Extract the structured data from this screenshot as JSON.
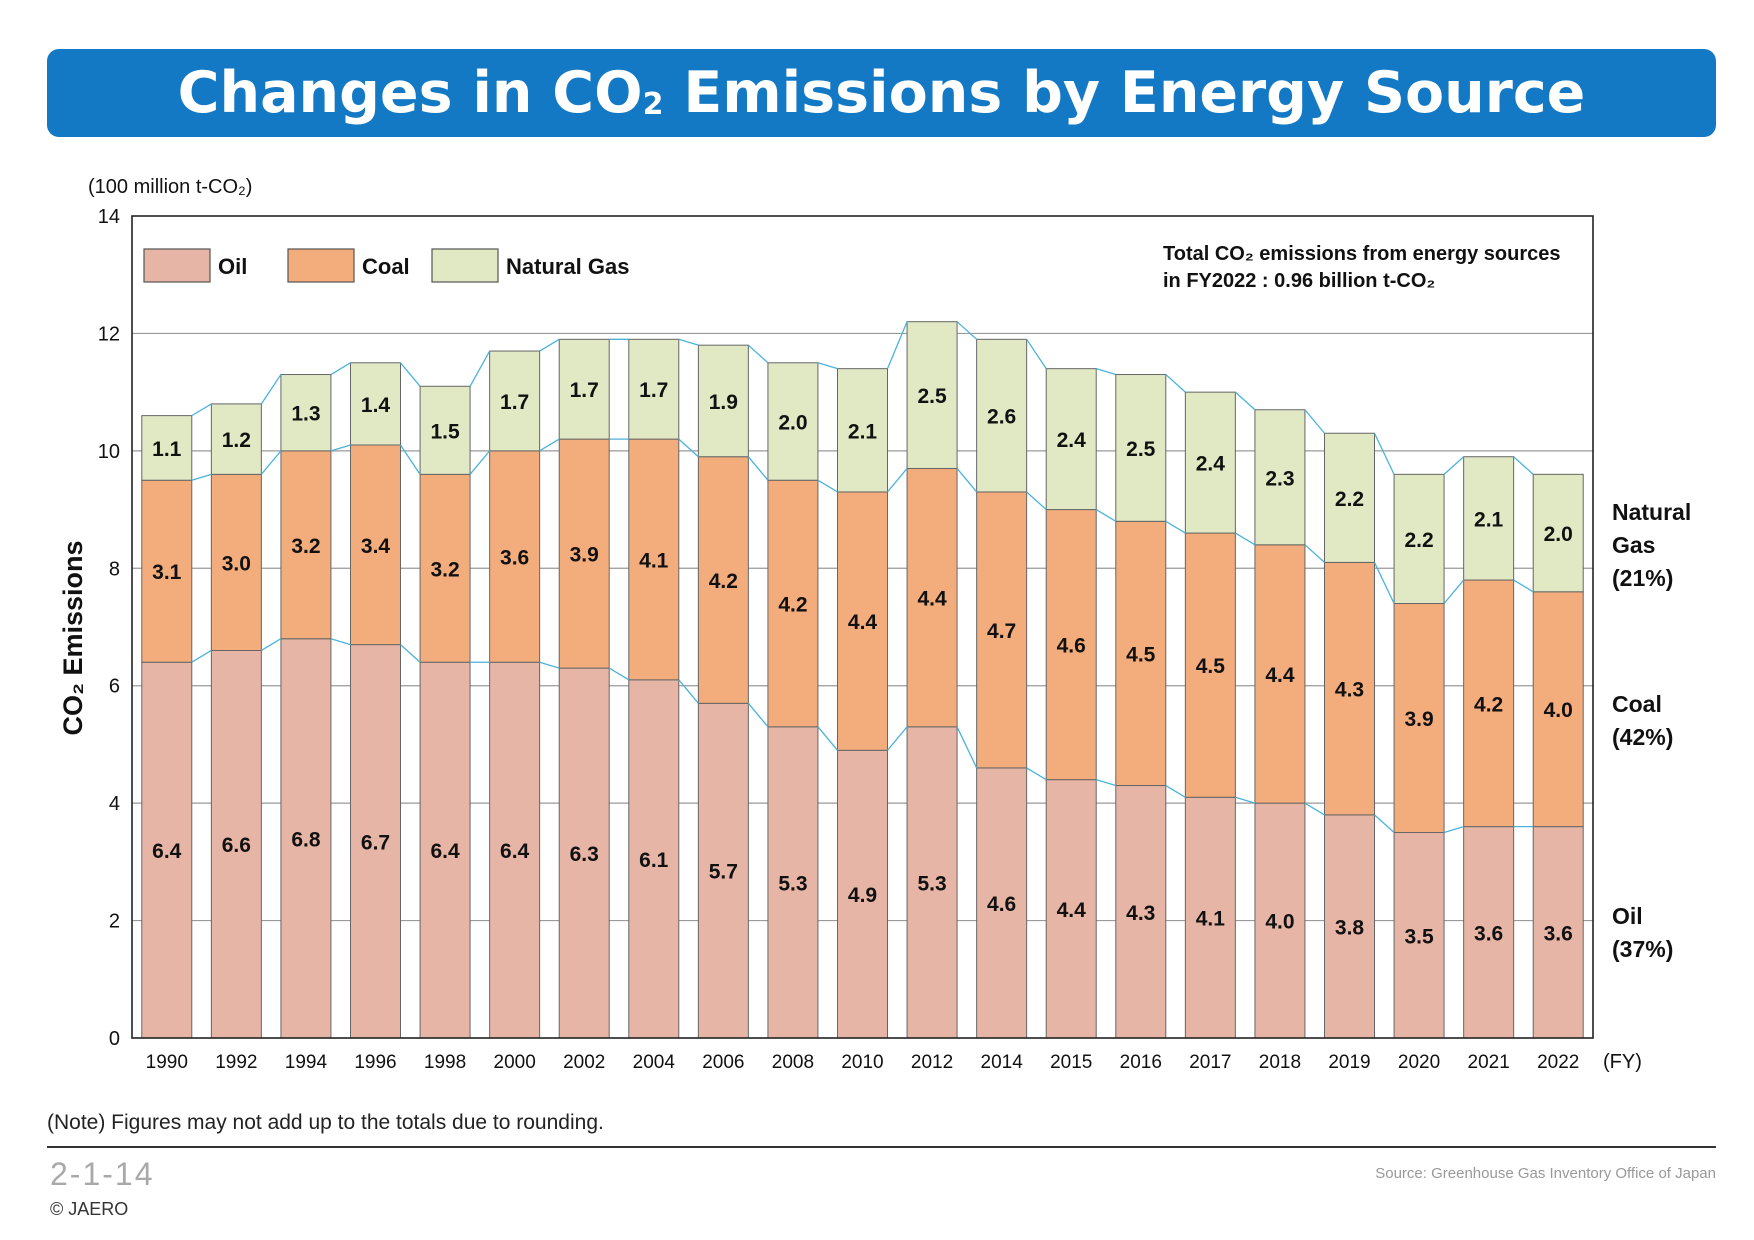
{
  "title": {
    "main_before": "Changes in CO",
    "main_sub": "2",
    "main_after": " Emissions by Energy Source"
  },
  "chart_data": {
    "type": "bar",
    "stacked": true,
    "unit_label": "(100 million t-CO₂)",
    "ylabel": "CO₂ Emissions",
    "xlabel_unit": "(FY)",
    "ylim": [
      0,
      14
    ],
    "yticks": [
      0,
      2,
      4,
      6,
      8,
      10,
      12,
      14
    ],
    "grid": true,
    "legend_position": "top-left",
    "categories": [
      "1990",
      "1992",
      "1994",
      "1996",
      "1998",
      "2000",
      "2002",
      "2004",
      "2006",
      "2008",
      "2010",
      "2012",
      "2014",
      "2015",
      "2016",
      "2017",
      "2018",
      "2019",
      "2020",
      "2021",
      "2022"
    ],
    "series": [
      {
        "name": "Oil",
        "color": "#e6b5a6",
        "values": [
          6.4,
          6.6,
          6.8,
          6.7,
          6.4,
          6.4,
          6.3,
          6.1,
          5.7,
          5.3,
          4.9,
          5.3,
          4.6,
          4.4,
          4.3,
          4.1,
          4.0,
          3.8,
          3.5,
          3.6,
          3.6
        ],
        "labels": [
          "6.4",
          "6.6",
          "6.8",
          "6.7",
          "6.4",
          "6.4",
          "6.3",
          "6.1",
          "5.7",
          "5.3",
          "4.9",
          "5.3",
          "4.6",
          "4.4",
          "4.3",
          "4.1",
          "4.0",
          "3.8",
          "3.5",
          "3.6",
          "3.6"
        ]
      },
      {
        "name": "Coal",
        "color": "#f3ac7c",
        "values": [
          3.1,
          3.0,
          3.2,
          3.4,
          3.2,
          3.6,
          3.9,
          4.1,
          4.2,
          4.2,
          4.4,
          4.4,
          4.7,
          4.6,
          4.5,
          4.5,
          4.4,
          4.3,
          3.9,
          4.2,
          4.0
        ],
        "labels": [
          "3.1",
          "3.0",
          "3.2",
          "3.4",
          "3.2",
          "3.6",
          "3.9",
          "4.1",
          "4.2",
          "4.2",
          "4.4",
          "4.4",
          "4.7",
          "4.6",
          "4.5",
          "4.5",
          "4.4",
          "4.3",
          "3.9",
          "4.2",
          "4.0"
        ]
      },
      {
        "name": "Natural Gas",
        "color": "#e1e8c4",
        "values": [
          1.1,
          1.2,
          1.3,
          1.4,
          1.5,
          1.7,
          1.7,
          1.7,
          1.9,
          2.0,
          2.1,
          2.5,
          2.6,
          2.4,
          2.5,
          2.4,
          2.3,
          2.2,
          2.2,
          2.1,
          2.0
        ],
        "labels": [
          "1.1",
          "1.2",
          "1.3",
          "1.4",
          "1.5",
          "1.7",
          "1.7",
          "1.7",
          "1.9",
          "2.0",
          "2.1",
          "2.5",
          "2.6",
          "2.4",
          "2.5",
          "2.4",
          "2.3",
          "2.2",
          "2.2",
          "2.1",
          "2.0"
        ]
      }
    ],
    "annotation": {
      "line1": "Total CO₂ emissions from energy sources",
      "line2": "in FY2022 : 0.96 billion t-CO₂"
    },
    "right_labels": [
      {
        "lines": [
          "Natural",
          "Gas",
          "(21%)"
        ]
      },
      {
        "lines": [
          "Coal",
          "(42%)"
        ]
      },
      {
        "lines": [
          "Oil",
          "(37%)"
        ]
      }
    ],
    "connector_color": "#4bb3d9"
  },
  "footer": {
    "note": "(Note) Figures may not add up to the totals due to rounding.",
    "figure_number": "2-1-14",
    "source": "Source: Greenhouse Gas Inventory Office of Japan",
    "copyright": "© JAERO"
  }
}
